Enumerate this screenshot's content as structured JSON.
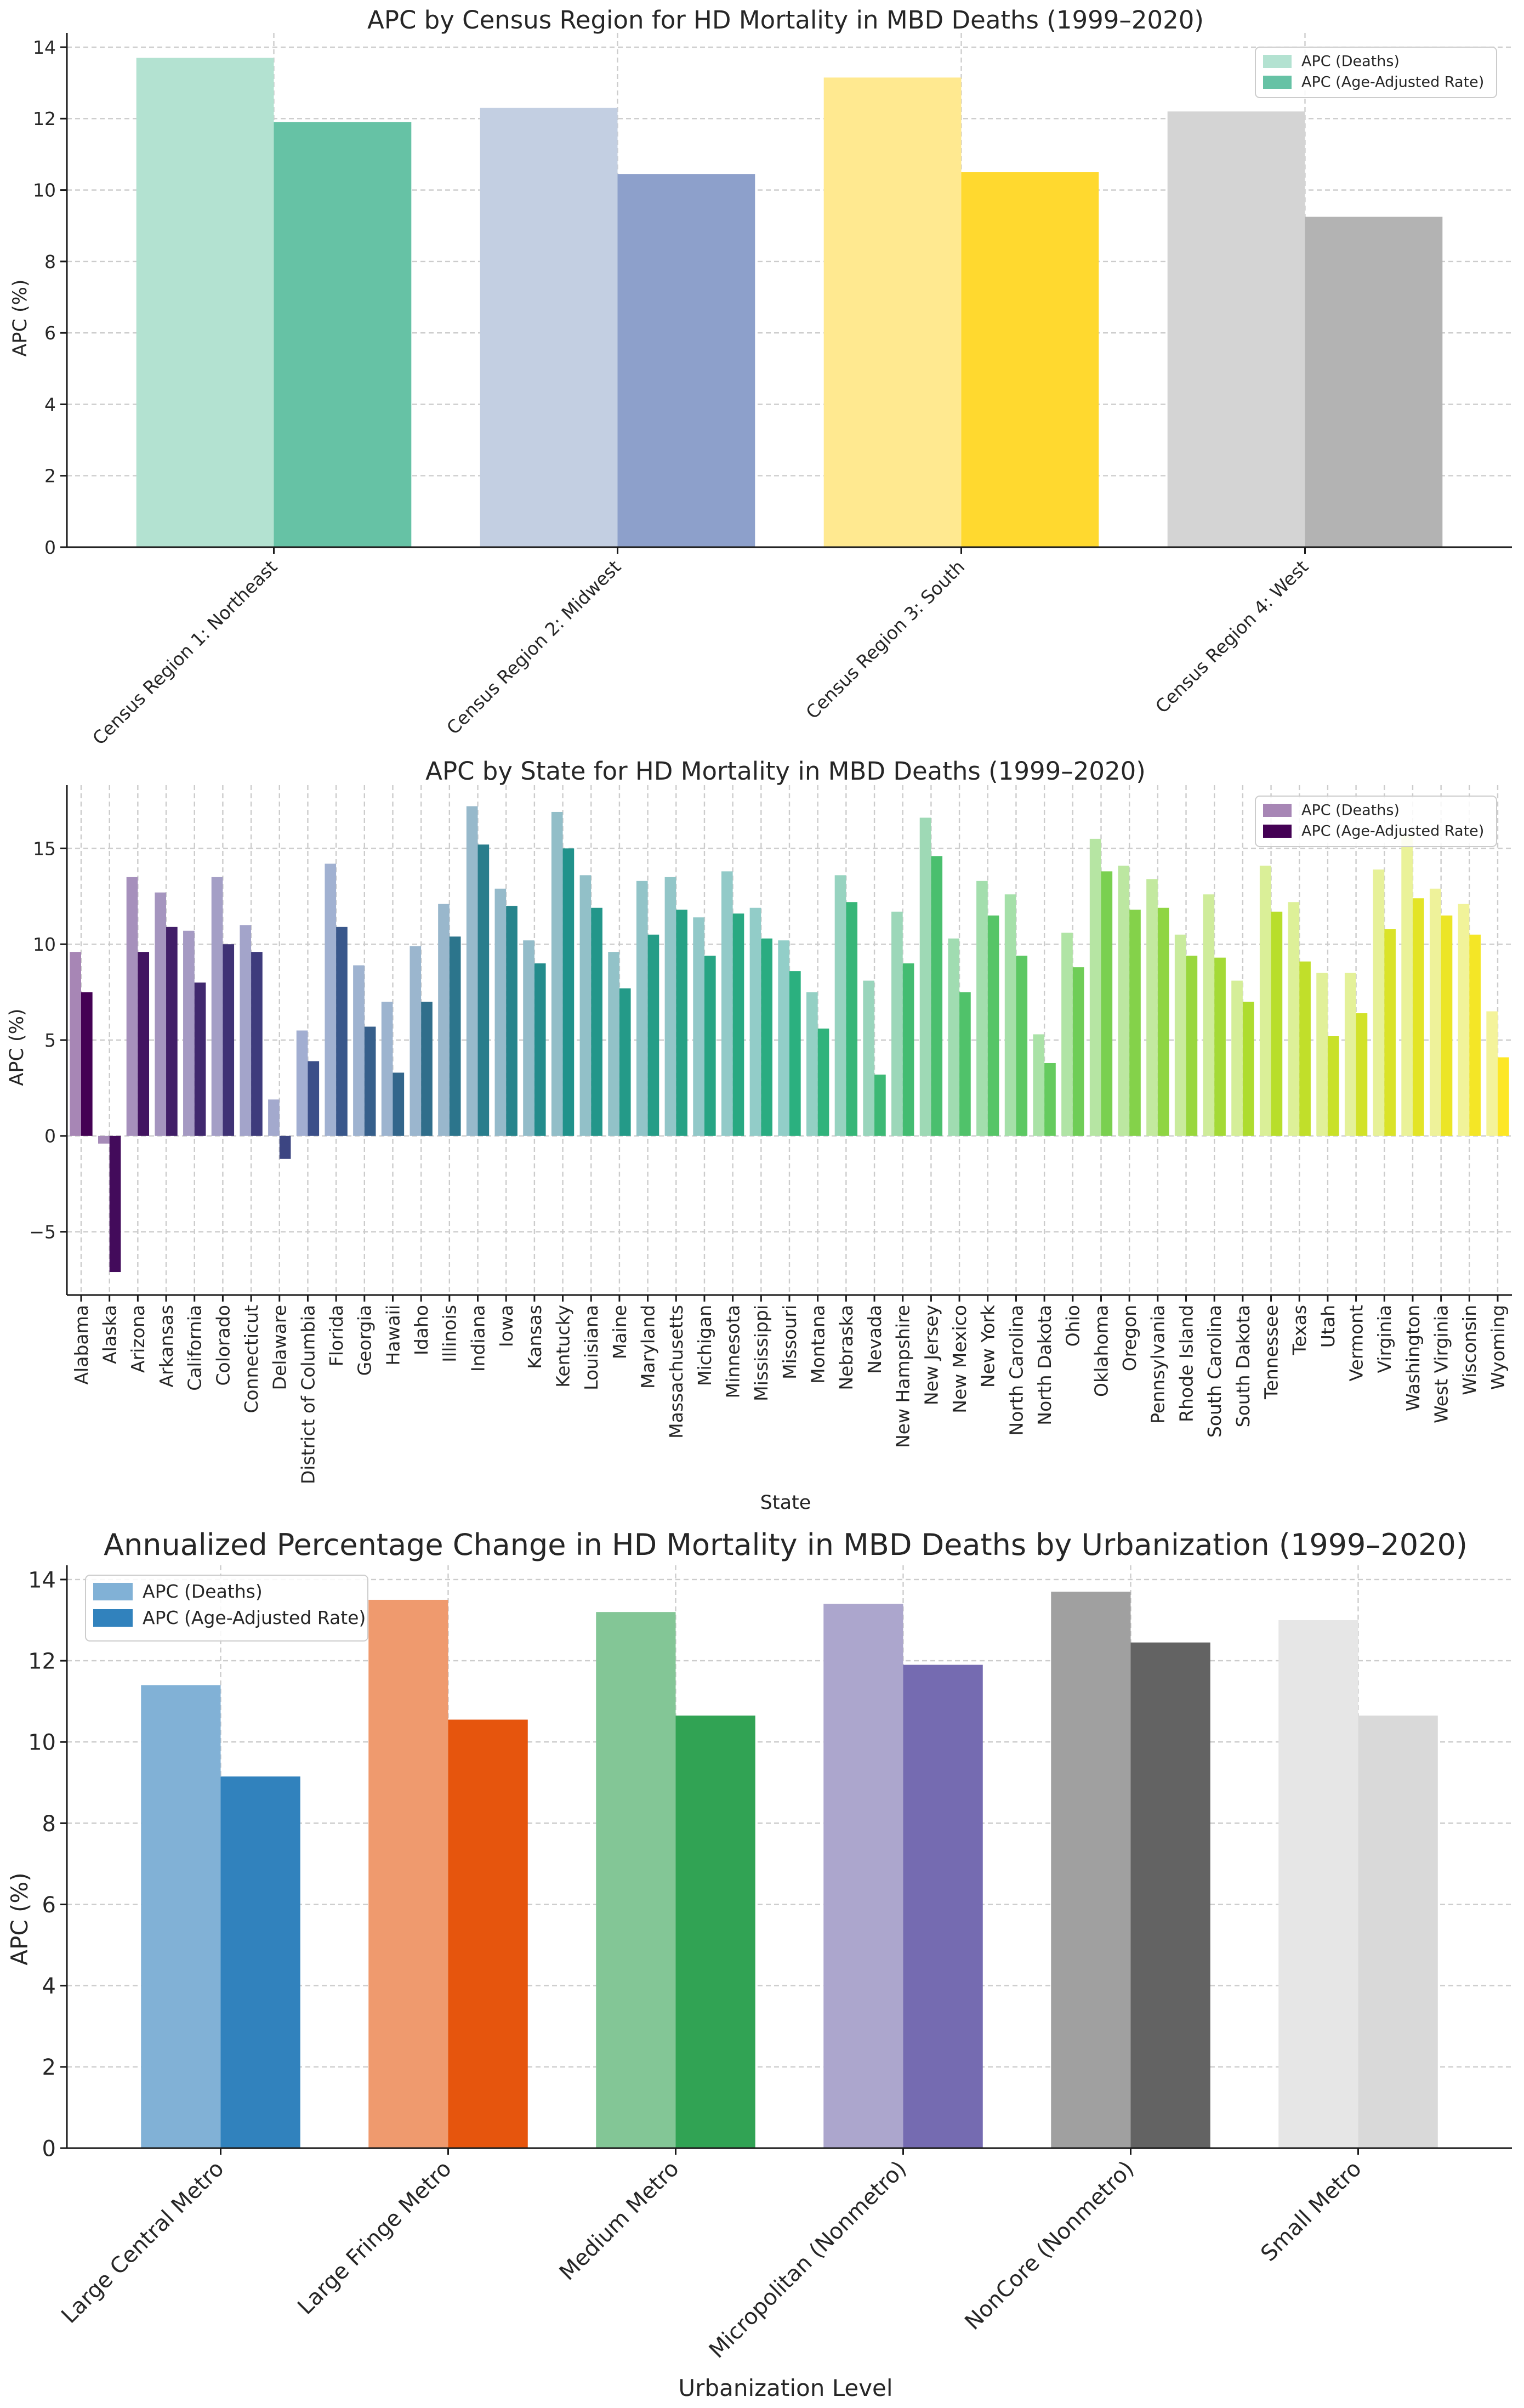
{
  "chart_data": [
    {
      "type": "bar",
      "title": "APC by Census Region for HD Mortality in MBD Deaths (1999–2020)",
      "xlabel": "",
      "ylabel": "APC (%)",
      "ylim": [
        0,
        14.4
      ],
      "yticks": [
        "0",
        "2",
        "4",
        "6",
        "8",
        "10",
        "12",
        "14"
      ],
      "ytick_values": [
        0,
        2,
        4,
        6,
        8,
        10,
        12,
        14
      ],
      "grid": true,
      "legend_position": "top-right",
      "categories": [
        "Census Region 1: Northeast",
        "Census Region 2: Midwest",
        "Census Region 3: South",
        "Census Region 4: West"
      ],
      "series": [
        {
          "name": "APC (Deaths)",
          "values": [
            13.7,
            12.3,
            13.15,
            12.2
          ],
          "colors": [
            "#b3e2d1",
            "#c3cfe2",
            "#ffe990",
            "#d4d4d4"
          ]
        },
        {
          "name": "APC (Age-Adjusted Rate)",
          "values": [
            11.9,
            10.45,
            10.5,
            9.25
          ],
          "colors": [
            "#66c2a5",
            "#8da0cb",
            "#ffd92f",
            "#b3b3b3"
          ]
        }
      ],
      "legend_colors": [
        "#b3e2d1",
        "#66c2a5"
      ]
    },
    {
      "type": "bar",
      "title": "APC by State for HD Mortality in MBD Deaths (1999–2020)",
      "xlabel": "State",
      "ylabel": "APC (%)",
      "ylim": [
        -8.3,
        18.3
      ],
      "yticks": [
        "−5",
        "0",
        "5",
        "10",
        "15"
      ],
      "ytick_values": [
        -5,
        0,
        5,
        10,
        15
      ],
      "grid": true,
      "legend_position": "top-right",
      "categories": [
        "Alabama",
        "Alaska",
        "Arizona",
        "Arkansas",
        "California",
        "Colorado",
        "Connecticut",
        "Delaware",
        "District of Columbia",
        "Florida",
        "Georgia",
        "Hawaii",
        "Idaho",
        "Illinois",
        "Indiana",
        "Iowa",
        "Kansas",
        "Kentucky",
        "Louisiana",
        "Maine",
        "Maryland",
        "Massachusetts",
        "Michigan",
        "Minnesota",
        "Mississippi",
        "Missouri",
        "Montana",
        "Nebraska",
        "Nevada",
        "New Hampshire",
        "New Jersey",
        "New Mexico",
        "New York",
        "North Carolina",
        "North Dakota",
        "Ohio",
        "Oklahoma",
        "Oregon",
        "Pennsylvania",
        "Rhode Island",
        "South Carolina",
        "South Dakota",
        "Tennessee",
        "Texas",
        "Utah",
        "Vermont",
        "Virginia",
        "Washington",
        "West Virginia",
        "Wisconsin",
        "Wyoming"
      ],
      "series": [
        {
          "name": "APC (Deaths)",
          "values": [
            9.6,
            -0.4,
            13.5,
            12.7,
            10.7,
            13.5,
            11.0,
            1.9,
            5.5,
            14.2,
            8.9,
            7.0,
            9.9,
            12.1,
            17.2,
            12.9,
            10.2,
            16.9,
            13.6,
            9.6,
            13.3,
            13.5,
            11.4,
            13.8,
            11.9,
            10.2,
            7.5,
            13.6,
            8.1,
            11.7,
            16.6,
            10.3,
            13.3,
            12.6,
            5.3,
            10.6,
            15.5,
            14.1,
            13.4,
            10.5,
            12.6,
            8.1,
            14.1,
            12.2,
            8.5,
            8.5,
            13.9,
            15.7,
            12.9,
            12.1,
            6.5
          ]
        },
        {
          "name": "APC (Age-Adjusted Rate)",
          "values": [
            7.5,
            -7.1,
            9.6,
            10.9,
            8.0,
            10.0,
            9.6,
            -1.2,
            3.9,
            10.9,
            5.7,
            3.3,
            7.0,
            10.4,
            15.2,
            12.0,
            9.0,
            15.0,
            11.9,
            7.7,
            10.5,
            11.8,
            9.4,
            11.6,
            10.3,
            8.6,
            5.6,
            12.2,
            3.2,
            9.0,
            14.6,
            7.5,
            11.5,
            9.4,
            3.8,
            8.8,
            13.8,
            11.8,
            11.9,
            9.4,
            9.3,
            7.0,
            11.7,
            9.1,
            5.2,
            6.4,
            10.8,
            12.4,
            11.5,
            10.5,
            4.1
          ]
        }
      ],
      "palette_deaths": [
        "#a786b5",
        "#a2b0d2",
        "#92bdc8",
        "#92cec8",
        "#a6e1a8",
        "#d9ef98",
        "#f4f39a"
      ],
      "palette_adjusted": [
        "#440154",
        "#3b528b",
        "#21918c",
        "#2bb07f",
        "#5ec962",
        "#b5de2b",
        "#fde725"
      ],
      "legend_colors": [
        "#a786b5",
        "#440154"
      ]
    },
    {
      "type": "bar",
      "title": "Annualized Percentage Change in HD Mortality in MBD Deaths by Urbanization (1999–2020)",
      "xlabel": "Urbanization Level",
      "ylabel": "APC (%)",
      "ylim": [
        0,
        14.35
      ],
      "yticks": [
        "0",
        "2",
        "4",
        "6",
        "8",
        "10",
        "12",
        "14"
      ],
      "ytick_values": [
        0,
        2,
        4,
        6,
        8,
        10,
        12,
        14
      ],
      "grid": true,
      "legend_position": "top-left",
      "categories": [
        "Large Central Metro",
        "Large Fringe Metro",
        "Medium Metro",
        "Micropolitan (Nonmetro)",
        "NonCore (Nonmetro)",
        "Small Metro"
      ],
      "series": [
        {
          "name": "APC (Deaths)",
          "values": [
            11.4,
            13.5,
            13.2,
            13.4,
            13.7,
            13.0
          ],
          "colors": [
            "#81b1d6",
            "#ef9a6e",
            "#83c696",
            "#aca6cd",
            "#a0a0a0",
            "#e6e6e6"
          ]
        },
        {
          "name": "APC (Age-Adjusted Rate)",
          "values": [
            9.15,
            10.55,
            10.65,
            11.9,
            12.45,
            10.65
          ],
          "colors": [
            "#3182bd",
            "#e6550d",
            "#31a354",
            "#756bb1",
            "#636363",
            "#d9d9d9"
          ]
        }
      ],
      "legend_colors": [
        "#81b1d6",
        "#3182bd"
      ]
    }
  ]
}
